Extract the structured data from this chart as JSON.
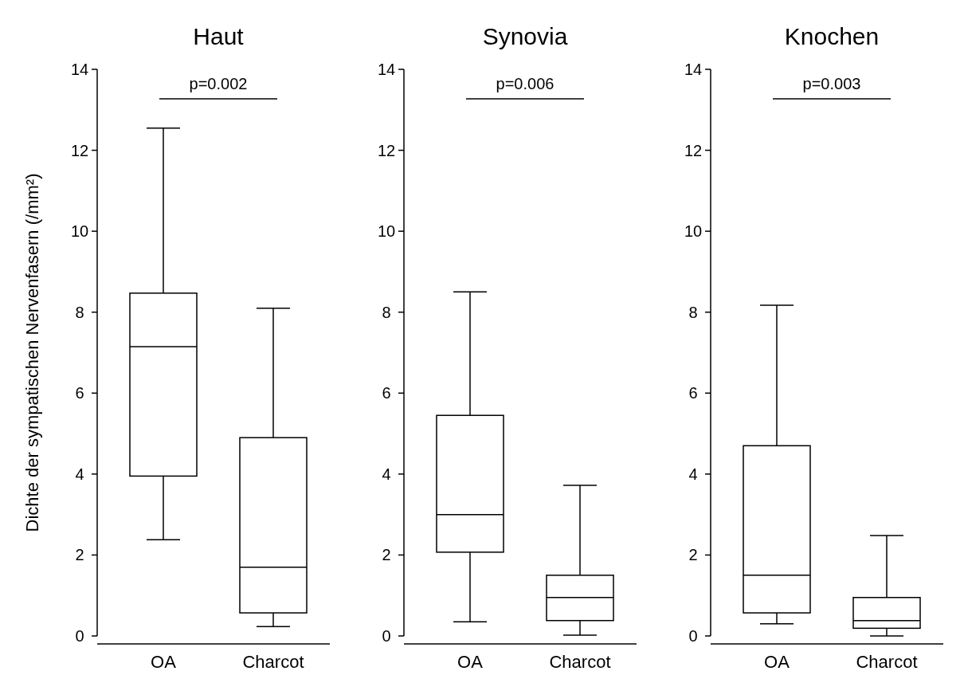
{
  "chart_data": [
    {
      "type": "box",
      "title": "Haut",
      "ylabel": "Dichte der sympatischen Nervenfasern (/mm²)",
      "categories": [
        "OA",
        "Charcot"
      ],
      "boxes": [
        {
          "low": 2.38,
          "q1": 3.95,
          "median": 7.15,
          "q3": 8.47,
          "high": 12.55
        },
        {
          "low": 0.23,
          "q1": 0.57,
          "median": 1.7,
          "q3": 4.9,
          "high": 8.1
        }
      ],
      "ylim": [
        0,
        14
      ],
      "yticks": [
        0,
        2,
        4,
        6,
        8,
        10,
        12,
        14
      ],
      "annotations": [
        "p=0.002"
      ]
    },
    {
      "type": "box",
      "title": "Synovia",
      "categories": [
        "OA",
        "Charcot"
      ],
      "boxes": [
        {
          "low": 0.35,
          "q1": 2.07,
          "median": 3.0,
          "q3": 5.45,
          "high": 8.5
        },
        {
          "low": 0.02,
          "q1": 0.38,
          "median": 0.95,
          "q3": 1.5,
          "high": 3.72
        }
      ],
      "ylim": [
        0,
        14
      ],
      "yticks": [
        0,
        2,
        4,
        6,
        8,
        10,
        12,
        14
      ],
      "annotations": [
        "p=0.006"
      ]
    },
    {
      "type": "box",
      "title": "Knochen",
      "categories": [
        "OA",
        "Charcot"
      ],
      "boxes": [
        {
          "low": 0.3,
          "q1": 0.57,
          "median": 1.5,
          "q3": 4.7,
          "high": 8.17
        },
        {
          "low": 0,
          "q1": 0.19,
          "median": 0.38,
          "q3": 0.95,
          "high": 2.48
        }
      ],
      "ylim": [
        0,
        14
      ],
      "yticks": [
        0,
        2,
        4,
        6,
        8,
        10,
        12,
        14
      ],
      "annotations": [
        "p=0.003"
      ]
    }
  ]
}
